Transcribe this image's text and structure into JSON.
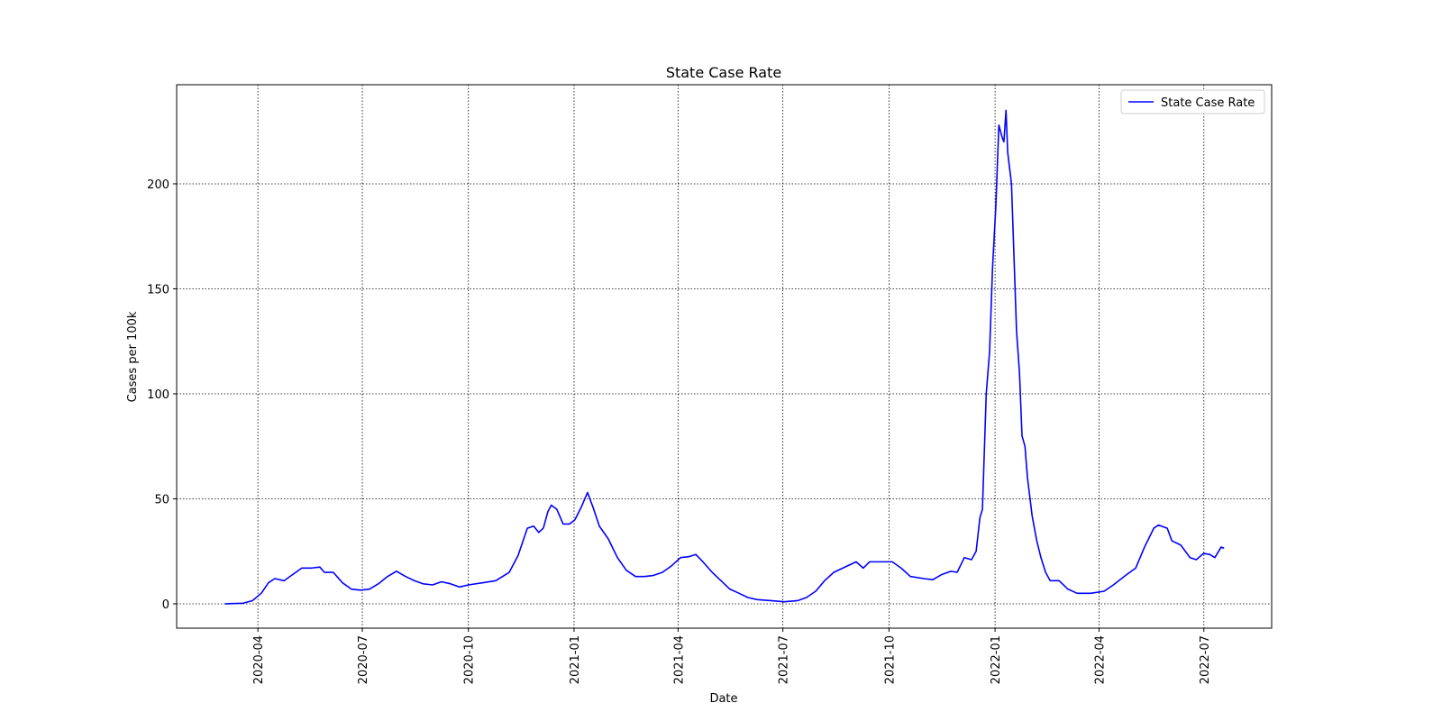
{
  "chart_data": {
    "type": "line",
    "title": "State Case Rate",
    "xlabel": "Date",
    "ylabel": "Cases per 100k",
    "x": [
      2020.171,
      2020.214,
      2020.236,
      2020.257,
      2020.274,
      2020.289,
      2020.311,
      2020.332,
      2020.353,
      2020.375,
      2020.396,
      2020.407,
      2020.428,
      2020.45,
      2020.471,
      2020.493,
      2020.514,
      2020.535,
      2020.557,
      2020.578,
      2020.6,
      2020.621,
      2020.642,
      2020.664,
      2020.685,
      2020.707,
      2020.728,
      2020.749,
      2020.782,
      2020.814,
      2020.846,
      2020.867,
      2020.889,
      2020.904,
      2020.916,
      2020.927,
      2020.938,
      2020.946,
      2020.959,
      2020.974,
      2020.989,
      2021.002,
      2021.017,
      2021.032,
      2021.045,
      2021.06,
      2021.081,
      2021.103,
      2021.124,
      2021.146,
      2021.167,
      2021.188,
      2021.21,
      2021.231,
      2021.253,
      2021.274,
      2021.289,
      2021.306,
      2021.328,
      2021.349,
      2021.37,
      2021.392,
      2021.413,
      2021.435,
      2021.467,
      2021.499,
      2021.531,
      2021.552,
      2021.574,
      2021.595,
      2021.617,
      2021.649,
      2021.67,
      2021.687,
      2021.702,
      2021.724,
      2021.756,
      2021.777,
      2021.799,
      2021.831,
      2021.852,
      2021.874,
      2021.895,
      2021.91,
      2021.927,
      2021.944,
      2021.955,
      2021.964,
      2021.97,
      2021.979,
      2021.987,
      2021.994,
      2022.002,
      2022.009,
      2022.017,
      2022.021,
      2022.026,
      2022.03,
      2022.039,
      2022.045,
      2022.051,
      2022.058,
      2022.064,
      2022.071,
      2022.077,
      2022.088,
      2022.099,
      2022.109,
      2022.12,
      2022.131,
      2022.152,
      2022.173,
      2022.195,
      2022.227,
      2022.259,
      2022.281,
      2022.313,
      2022.334,
      2022.355,
      2022.377,
      2022.388,
      2022.409,
      2022.42,
      2022.441,
      2022.463,
      2022.478,
      2022.495,
      2022.51,
      2022.522,
      2022.537,
      2022.544
    ],
    "series": [
      {
        "name": "State Case Rate",
        "color": "#0000ff",
        "values": [
          0,
          0.3,
          1.5,
          5,
          10,
          12,
          11,
          14,
          17,
          17,
          17.5,
          15,
          15,
          10,
          7,
          6.5,
          7,
          9.5,
          13,
          15.5,
          13,
          11,
          9.5,
          9,
          10.5,
          9.5,
          8,
          9,
          10,
          11,
          15,
          23,
          36,
          37,
          34,
          36,
          44,
          47,
          45,
          38,
          38,
          40,
          46,
          53,
          46,
          37,
          31,
          22,
          16,
          13,
          13,
          13.5,
          15,
          18,
          22,
          22.5,
          23.5,
          20,
          15,
          11,
          7,
          5,
          3,
          2,
          1.5,
          1,
          1.5,
          3,
          6,
          11,
          15,
          18,
          20,
          17,
          20,
          20,
          20,
          17,
          13,
          12,
          11.5,
          14,
          15.5,
          15,
          22,
          21,
          25,
          41,
          45,
          100,
          120,
          160,
          190,
          228,
          222,
          220,
          235,
          215,
          200,
          165,
          130,
          110,
          80,
          75,
          60,
          42,
          30,
          22,
          15,
          11,
          11,
          7,
          5,
          5,
          6,
          9,
          14,
          17,
          27,
          36,
          37.5,
          36,
          30,
          28,
          22,
          21,
          24,
          23.5,
          22,
          27,
          26.5
        ]
      }
    ],
    "xlim": [
      2020.056,
      2022.657
    ],
    "xticks": [
      {
        "value": 2020.249,
        "label": "2020-04"
      },
      {
        "value": 2020.497,
        "label": "2020-07"
      },
      {
        "value": 2020.749,
        "label": "2020-10"
      },
      {
        "value": 2021.0,
        "label": "2021-01"
      },
      {
        "value": 2021.247,
        "label": "2021-04"
      },
      {
        "value": 2021.496,
        "label": "2021-07"
      },
      {
        "value": 2021.748,
        "label": "2021-10"
      },
      {
        "value": 2022.0,
        "label": "2022-01"
      },
      {
        "value": 2022.247,
        "label": "2022-04"
      },
      {
        "value": 2022.496,
        "label": "2022-07"
      }
    ],
    "ylim": [
      -11.6,
      247.2
    ],
    "yticks": [
      0,
      50,
      100,
      150,
      200
    ],
    "grid": true,
    "legend": "upper right"
  }
}
